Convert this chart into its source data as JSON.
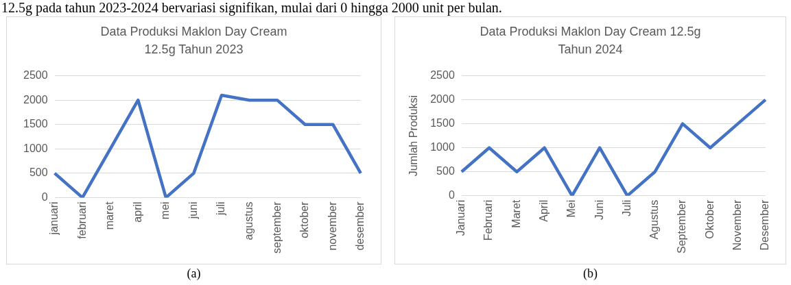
{
  "chart_data": [
    {
      "type": "line",
      "title": "Data Produksi Maklon Day Cream 12.5g Tahun 2023",
      "categories": [
        "januari",
        "februari",
        "maret",
        "april",
        "mei",
        "juni",
        "juli",
        "agustus",
        "september",
        "oktober",
        "november",
        "desember"
      ],
      "values": [
        500,
        0,
        1000,
        2000,
        0,
        500,
        2100,
        2000,
        2000,
        1500,
        1500,
        500
      ],
      "color": "#4472c4",
      "ylim": [
        0,
        2500
      ],
      "yticks": [
        0,
        500,
        1000,
        1500,
        2000,
        2500
      ],
      "grid": "y",
      "annotations": [
        "12.5g pada tahun 2023-2024 bervariasi signifikan, mulai dari 0 hingga 2000 unit per bulan.",
        "(a)"
      ]
    },
    {
      "type": "line",
      "title": "Data Produksi Maklon Day Cream 12.5g Tahun 2024",
      "ylabel": "Jumlah Produksi",
      "categories": [
        "Januari",
        "Februari",
        "Maret",
        "April",
        "Mei",
        "Juni",
        "Juli",
        "Agustus",
        "September",
        "Oktober",
        "November",
        "Desember"
      ],
      "values": [
        500,
        1000,
        500,
        1000,
        0,
        1000,
        0,
        500,
        1500,
        1000,
        1500,
        2000
      ],
      "color": "#4472c4",
      "ylim": [
        0,
        2500
      ],
      "yticks": [
        0,
        500,
        1000,
        1500,
        2000,
        2500
      ],
      "grid": "y",
      "annotations": [
        "(b)"
      ]
    }
  ]
}
